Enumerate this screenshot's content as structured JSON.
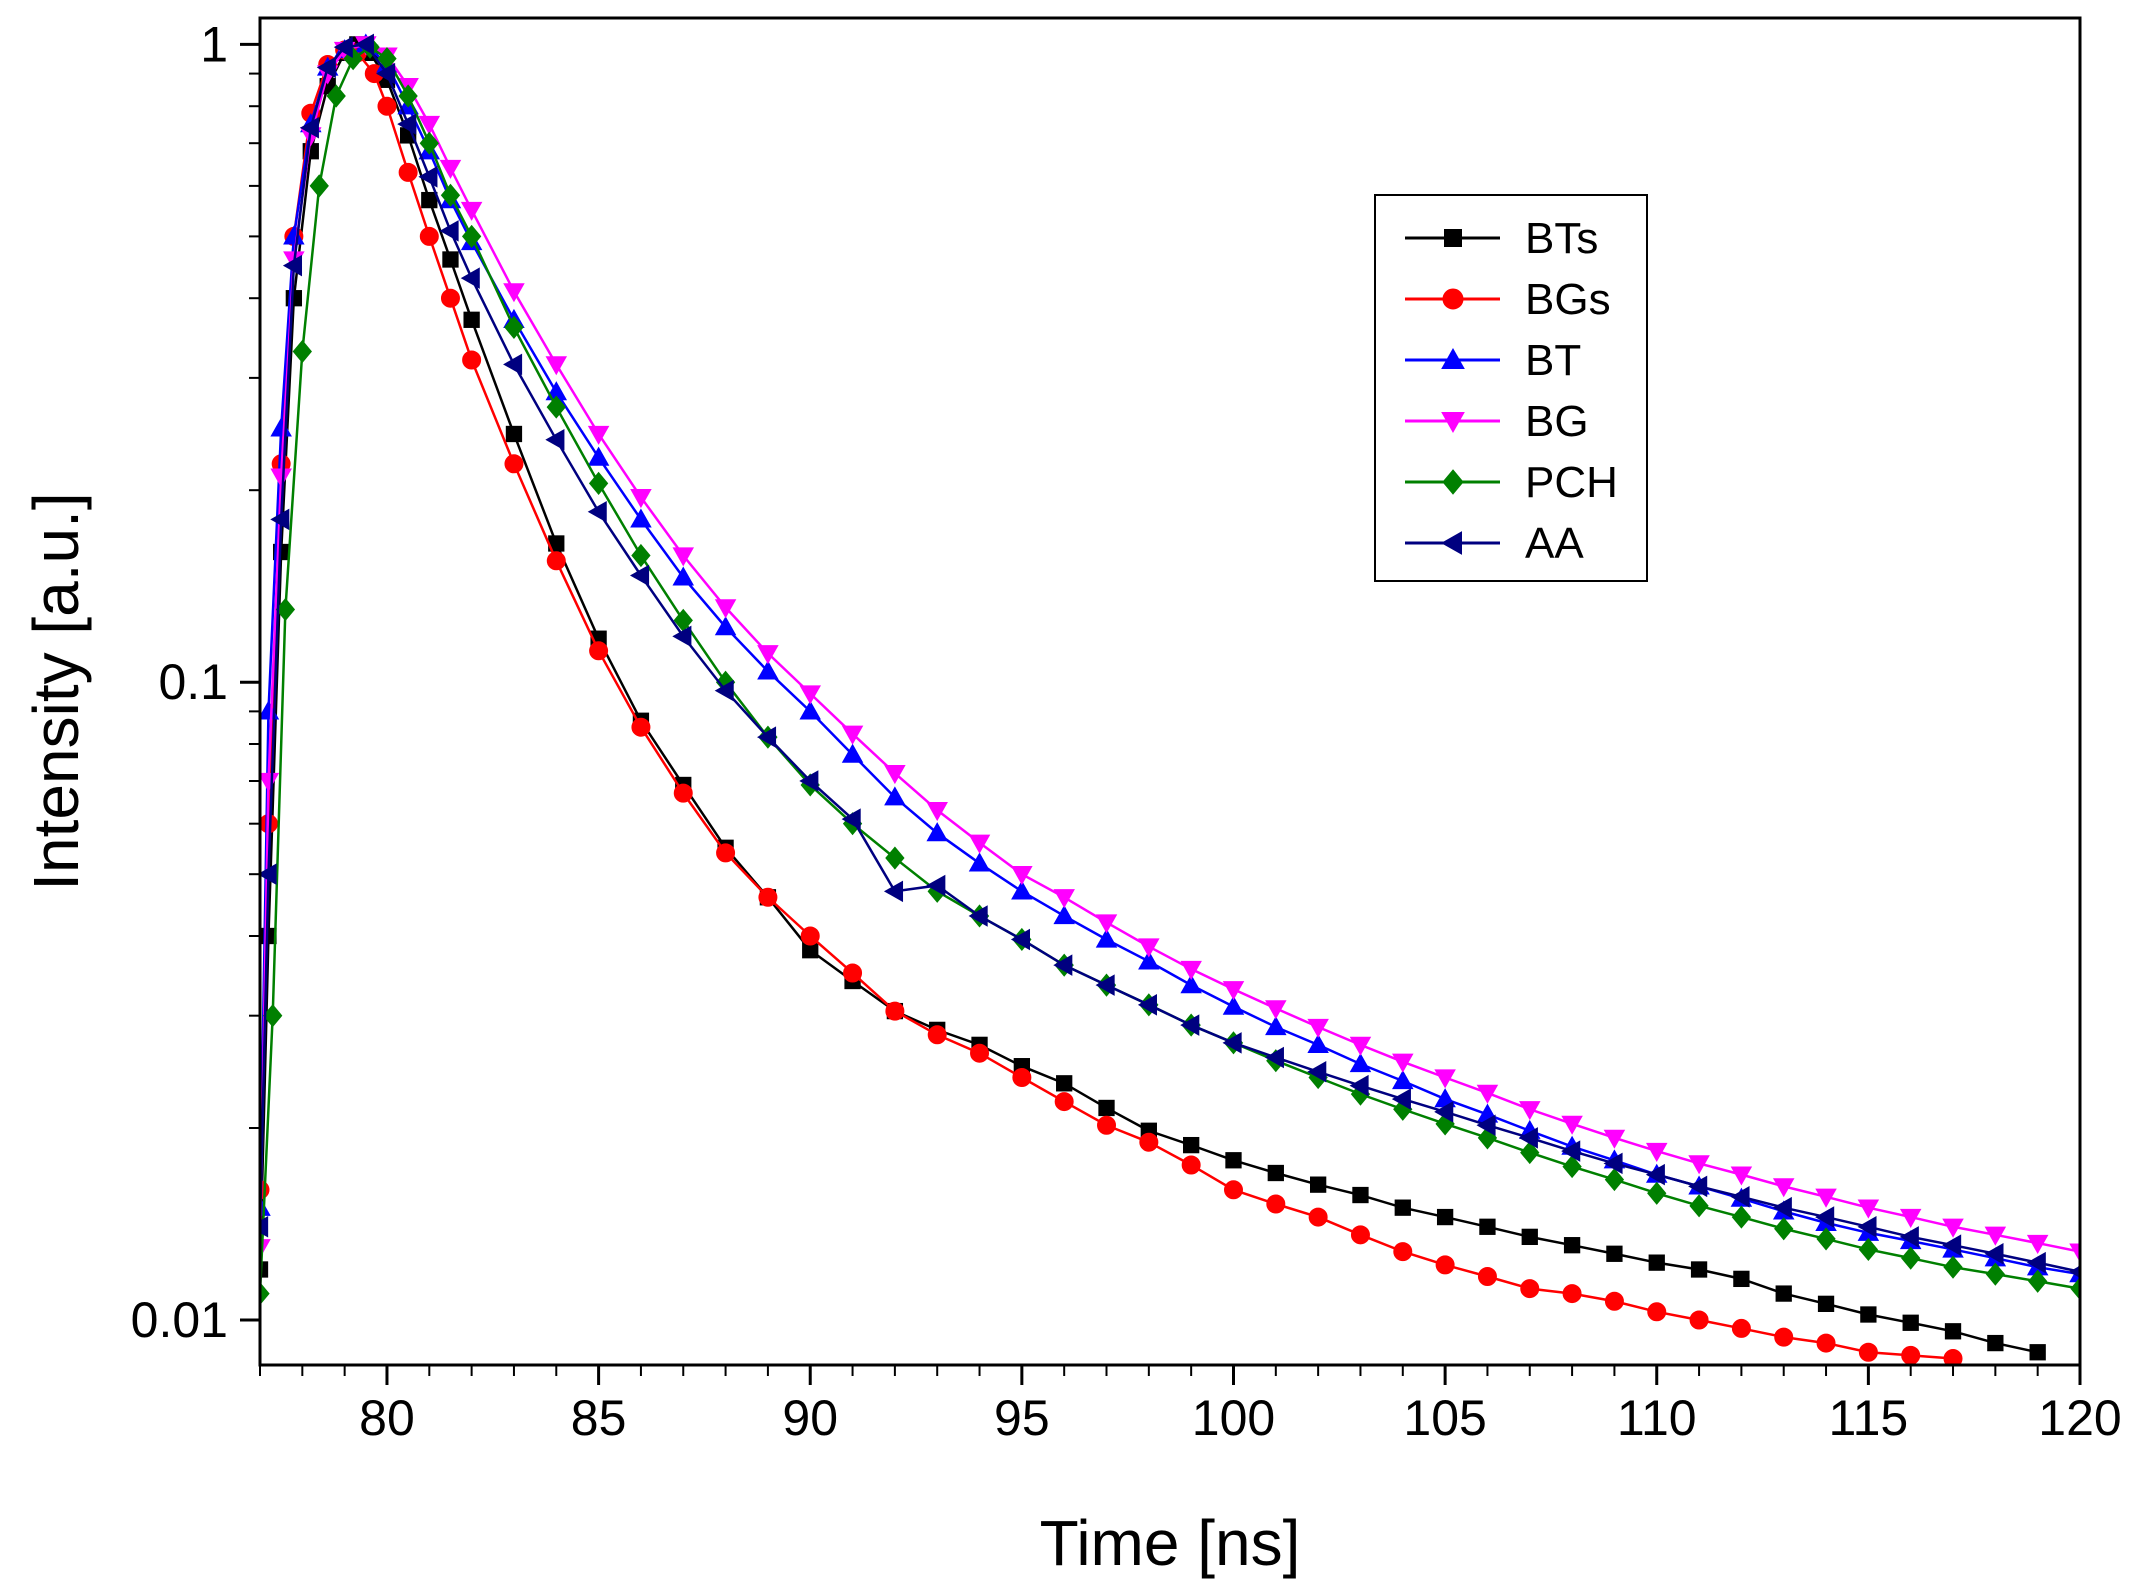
{
  "chart_data": {
    "type": "scatter",
    "xlabel": "Time [ns]",
    "ylabel": "Intensity [a.u.]",
    "xlim": [
      77,
      120
    ],
    "ylim": [
      0.0085,
      1.1
    ],
    "yscale": "log",
    "xticks": [
      80,
      85,
      90,
      95,
      100,
      105,
      110,
      115,
      120
    ],
    "yticks": [
      0.01,
      0.1,
      1
    ],
    "ytick_labels": [
      "0.01",
      "0.1",
      "1"
    ],
    "grid": false,
    "legend_position": "top-right",
    "series": [
      {
        "name": "BTs",
        "color": "#000000",
        "marker": "square",
        "points": [
          [
            77,
            0.012
          ],
          [
            77.2,
            0.04
          ],
          [
            77.5,
            0.16
          ],
          [
            77.8,
            0.4
          ],
          [
            78.2,
            0.68
          ],
          [
            78.6,
            0.86
          ],
          [
            79,
            0.97
          ],
          [
            79.3,
            1.0
          ],
          [
            79.6,
            0.97
          ],
          [
            80,
            0.88
          ],
          [
            80.5,
            0.72
          ],
          [
            81,
            0.57
          ],
          [
            81.5,
            0.46
          ],
          [
            82,
            0.37
          ],
          [
            83,
            0.245
          ],
          [
            84,
            0.165
          ],
          [
            85,
            0.117
          ],
          [
            86,
            0.087
          ],
          [
            87,
            0.069
          ],
          [
            88,
            0.055
          ],
          [
            89,
            0.046
          ],
          [
            90,
            0.038
          ],
          [
            91,
            0.034
          ],
          [
            92,
            0.0305
          ],
          [
            93,
            0.0285
          ],
          [
            94,
            0.027
          ],
          [
            95,
            0.025
          ],
          [
            96,
            0.0235
          ],
          [
            97,
            0.0215
          ],
          [
            98,
            0.0198
          ],
          [
            99,
            0.0188
          ],
          [
            100,
            0.0178
          ],
          [
            101,
            0.017
          ],
          [
            102,
            0.0163
          ],
          [
            103,
            0.0157
          ],
          [
            104,
            0.015
          ],
          [
            105,
            0.0145
          ],
          [
            106,
            0.014
          ],
          [
            107,
            0.0135
          ],
          [
            108,
            0.0131
          ],
          [
            109,
            0.0127
          ],
          [
            110,
            0.0123
          ],
          [
            111,
            0.012
          ],
          [
            112,
            0.0116
          ],
          [
            113,
            0.011
          ],
          [
            114,
            0.0106
          ],
          [
            115,
            0.0102
          ],
          [
            116,
            0.0099
          ],
          [
            117,
            0.0096
          ],
          [
            118,
            0.0092
          ],
          [
            119,
            0.0089
          ]
        ]
      },
      {
        "name": "BGs",
        "color": "#ff0000",
        "marker": "circle",
        "points": [
          [
            77,
            0.016
          ],
          [
            77.2,
            0.06
          ],
          [
            77.5,
            0.22
          ],
          [
            77.8,
            0.5
          ],
          [
            78.2,
            0.78
          ],
          [
            78.6,
            0.93
          ],
          [
            79,
            0.98
          ],
          [
            79.3,
            0.97
          ],
          [
            79.7,
            0.9
          ],
          [
            80,
            0.8
          ],
          [
            80.5,
            0.63
          ],
          [
            81,
            0.5
          ],
          [
            81.5,
            0.4
          ],
          [
            82,
            0.32
          ],
          [
            83,
            0.22
          ],
          [
            84,
            0.155
          ],
          [
            85,
            0.112
          ],
          [
            86,
            0.085
          ],
          [
            87,
            0.067
          ],
          [
            88,
            0.054
          ],
          [
            89,
            0.046
          ],
          [
            90,
            0.04
          ],
          [
            91,
            0.035
          ],
          [
            92,
            0.0305
          ],
          [
            93,
            0.028
          ],
          [
            94,
            0.0262
          ],
          [
            95,
            0.024
          ],
          [
            96,
            0.022
          ],
          [
            97,
            0.0202
          ],
          [
            98,
            0.019
          ],
          [
            99,
            0.0175
          ],
          [
            100,
            0.016
          ],
          [
            101,
            0.0152
          ],
          [
            102,
            0.0145
          ],
          [
            103,
            0.0136
          ],
          [
            104,
            0.0128
          ],
          [
            105,
            0.0122
          ],
          [
            106,
            0.0117
          ],
          [
            107,
            0.0112
          ],
          [
            108,
            0.011
          ],
          [
            109,
            0.0107
          ],
          [
            110,
            0.0103
          ],
          [
            111,
            0.01
          ],
          [
            112,
            0.0097
          ],
          [
            113,
            0.0094
          ],
          [
            114,
            0.0092
          ],
          [
            115,
            0.0089
          ],
          [
            116,
            0.0088
          ],
          [
            117,
            0.0087
          ]
        ]
      },
      {
        "name": "BT",
        "color": "#0000ff",
        "marker": "triangle-up",
        "points": [
          [
            77,
            0.015
          ],
          [
            77.2,
            0.09
          ],
          [
            77.5,
            0.25
          ],
          [
            77.8,
            0.5
          ],
          [
            78.2,
            0.75
          ],
          [
            78.6,
            0.92
          ],
          [
            79,
            0.98
          ],
          [
            79.5,
            1.0
          ],
          [
            80,
            0.93
          ],
          [
            80.5,
            0.8
          ],
          [
            81,
            0.68
          ],
          [
            81.5,
            0.57
          ],
          [
            82,
            0.49
          ],
          [
            83,
            0.37
          ],
          [
            84,
            0.285
          ],
          [
            85,
            0.225
          ],
          [
            86,
            0.18
          ],
          [
            87,
            0.146
          ],
          [
            88,
            0.122
          ],
          [
            89,
            0.104
          ],
          [
            90,
            0.09
          ],
          [
            91,
            0.077
          ],
          [
            92,
            0.066
          ],
          [
            93,
            0.058
          ],
          [
            94,
            0.052
          ],
          [
            95,
            0.047
          ],
          [
            96,
            0.043
          ],
          [
            97,
            0.0395
          ],
          [
            98,
            0.0365
          ],
          [
            99,
            0.0335
          ],
          [
            100,
            0.031
          ],
          [
            101,
            0.0288
          ],
          [
            102,
            0.027
          ],
          [
            103,
            0.0252
          ],
          [
            104,
            0.0237
          ],
          [
            105,
            0.0222
          ],
          [
            106,
            0.021
          ],
          [
            107,
            0.0198
          ],
          [
            108,
            0.0187
          ],
          [
            109,
            0.0178
          ],
          [
            110,
            0.0169
          ],
          [
            111,
            0.0162
          ],
          [
            112,
            0.0155
          ],
          [
            113,
            0.0148
          ],
          [
            114,
            0.0142
          ],
          [
            115,
            0.0137
          ],
          [
            116,
            0.0133
          ],
          [
            117,
            0.0129
          ],
          [
            118,
            0.0125
          ],
          [
            119,
            0.0121
          ],
          [
            120,
            0.0118
          ]
        ]
      },
      {
        "name": "BG",
        "color": "#ff00ff",
        "marker": "triangle-down",
        "points": [
          [
            77,
            0.013
          ],
          [
            77.2,
            0.07
          ],
          [
            77.5,
            0.21
          ],
          [
            77.8,
            0.46
          ],
          [
            78.2,
            0.72
          ],
          [
            78.6,
            0.9
          ],
          [
            79,
            0.98
          ],
          [
            79.5,
            1.0
          ],
          [
            80,
            0.96
          ],
          [
            80.5,
            0.86
          ],
          [
            81,
            0.75
          ],
          [
            81.5,
            0.64
          ],
          [
            82,
            0.55
          ],
          [
            83,
            0.41
          ],
          [
            84,
            0.315
          ],
          [
            85,
            0.245
          ],
          [
            86,
            0.195
          ],
          [
            87,
            0.158
          ],
          [
            88,
            0.131
          ],
          [
            89,
            0.111
          ],
          [
            90,
            0.096
          ],
          [
            91,
            0.083
          ],
          [
            92,
            0.072
          ],
          [
            93,
            0.063
          ],
          [
            94,
            0.056
          ],
          [
            95,
            0.05
          ],
          [
            96,
            0.046
          ],
          [
            97,
            0.042
          ],
          [
            98,
            0.0385
          ],
          [
            99,
            0.0355
          ],
          [
            100,
            0.033
          ],
          [
            101,
            0.0308
          ],
          [
            102,
            0.0288
          ],
          [
            103,
            0.027
          ],
          [
            104,
            0.0254
          ],
          [
            105,
            0.024
          ],
          [
            106,
            0.0227
          ],
          [
            107,
            0.0214
          ],
          [
            108,
            0.0203
          ],
          [
            109,
            0.0193
          ],
          [
            110,
            0.0184
          ],
          [
            111,
            0.0176
          ],
          [
            112,
            0.0169
          ],
          [
            113,
            0.0162
          ],
          [
            114,
            0.0156
          ],
          [
            115,
            0.015
          ],
          [
            116,
            0.0145
          ],
          [
            117,
            0.014
          ],
          [
            118,
            0.0136
          ],
          [
            119,
            0.0132
          ],
          [
            120,
            0.0128
          ]
        ]
      },
      {
        "name": "PCH",
        "color": "#008000",
        "marker": "diamond",
        "points": [
          [
            77,
            0.011
          ],
          [
            77.3,
            0.03
          ],
          [
            77.6,
            0.13
          ],
          [
            78,
            0.33
          ],
          [
            78.4,
            0.6
          ],
          [
            78.8,
            0.83
          ],
          [
            79.2,
            0.95
          ],
          [
            79.6,
            0.99
          ],
          [
            80,
            0.95
          ],
          [
            80.5,
            0.83
          ],
          [
            81,
            0.7
          ],
          [
            81.5,
            0.58
          ],
          [
            82,
            0.5
          ],
          [
            83,
            0.36
          ],
          [
            84,
            0.27
          ],
          [
            85,
            0.205
          ],
          [
            86,
            0.158
          ],
          [
            87,
            0.125
          ],
          [
            88,
            0.1
          ],
          [
            89,
            0.082
          ],
          [
            90,
            0.069
          ],
          [
            91,
            0.06
          ],
          [
            92,
            0.053
          ],
          [
            93,
            0.047
          ],
          [
            94,
            0.043
          ],
          [
            95,
            0.0395
          ],
          [
            96,
            0.036
          ],
          [
            97,
            0.0335
          ],
          [
            98,
            0.0312
          ],
          [
            99,
            0.029
          ],
          [
            100,
            0.0272
          ],
          [
            101,
            0.0255
          ],
          [
            102,
            0.024
          ],
          [
            103,
            0.0226
          ],
          [
            104,
            0.0214
          ],
          [
            105,
            0.0203
          ],
          [
            106,
            0.0193
          ],
          [
            107,
            0.0183
          ],
          [
            108,
            0.0174
          ],
          [
            109,
            0.0166
          ],
          [
            110,
            0.0158
          ],
          [
            111,
            0.0151
          ],
          [
            112,
            0.0145
          ],
          [
            113,
            0.0139
          ],
          [
            114,
            0.0134
          ],
          [
            115,
            0.0129
          ],
          [
            116,
            0.0125
          ],
          [
            117,
            0.0121
          ],
          [
            118,
            0.0118
          ],
          [
            119,
            0.0115
          ],
          [
            120,
            0.0112
          ]
        ]
      },
      {
        "name": "AA",
        "color": "#000080",
        "marker": "triangle-left",
        "points": [
          [
            77,
            0.014
          ],
          [
            77.2,
            0.05
          ],
          [
            77.5,
            0.18
          ],
          [
            77.8,
            0.45
          ],
          [
            78.2,
            0.74
          ],
          [
            78.6,
            0.92
          ],
          [
            79,
            0.99
          ],
          [
            79.5,
            1.0
          ],
          [
            80,
            0.9
          ],
          [
            80.5,
            0.75
          ],
          [
            81,
            0.62
          ],
          [
            81.5,
            0.51
          ],
          [
            82,
            0.43
          ],
          [
            83,
            0.315
          ],
          [
            84,
            0.24
          ],
          [
            85,
            0.185
          ],
          [
            86,
            0.147
          ],
          [
            87,
            0.118
          ],
          [
            88,
            0.097
          ],
          [
            89,
            0.082
          ],
          [
            90,
            0.07
          ],
          [
            91,
            0.061
          ],
          [
            92,
            0.047
          ],
          [
            93,
            0.048
          ],
          [
            94,
            0.043
          ],
          [
            95,
            0.0395
          ],
          [
            96,
            0.036
          ],
          [
            97,
            0.0335
          ],
          [
            98,
            0.0312
          ],
          [
            99,
            0.029
          ],
          [
            100,
            0.0272
          ],
          [
            101,
            0.0258
          ],
          [
            102,
            0.0245
          ],
          [
            103,
            0.0233
          ],
          [
            104,
            0.0222
          ],
          [
            105,
            0.0212
          ],
          [
            106,
            0.0202
          ],
          [
            107,
            0.0193
          ],
          [
            108,
            0.0184
          ],
          [
            109,
            0.0176
          ],
          [
            110,
            0.0169
          ],
          [
            111,
            0.0162
          ],
          [
            112,
            0.0156
          ],
          [
            113,
            0.015
          ],
          [
            114,
            0.0145
          ],
          [
            115,
            0.014
          ],
          [
            116,
            0.0135
          ],
          [
            117,
            0.0131
          ],
          [
            118,
            0.0127
          ],
          [
            119,
            0.0123
          ],
          [
            120,
            0.0119
          ]
        ]
      }
    ]
  }
}
